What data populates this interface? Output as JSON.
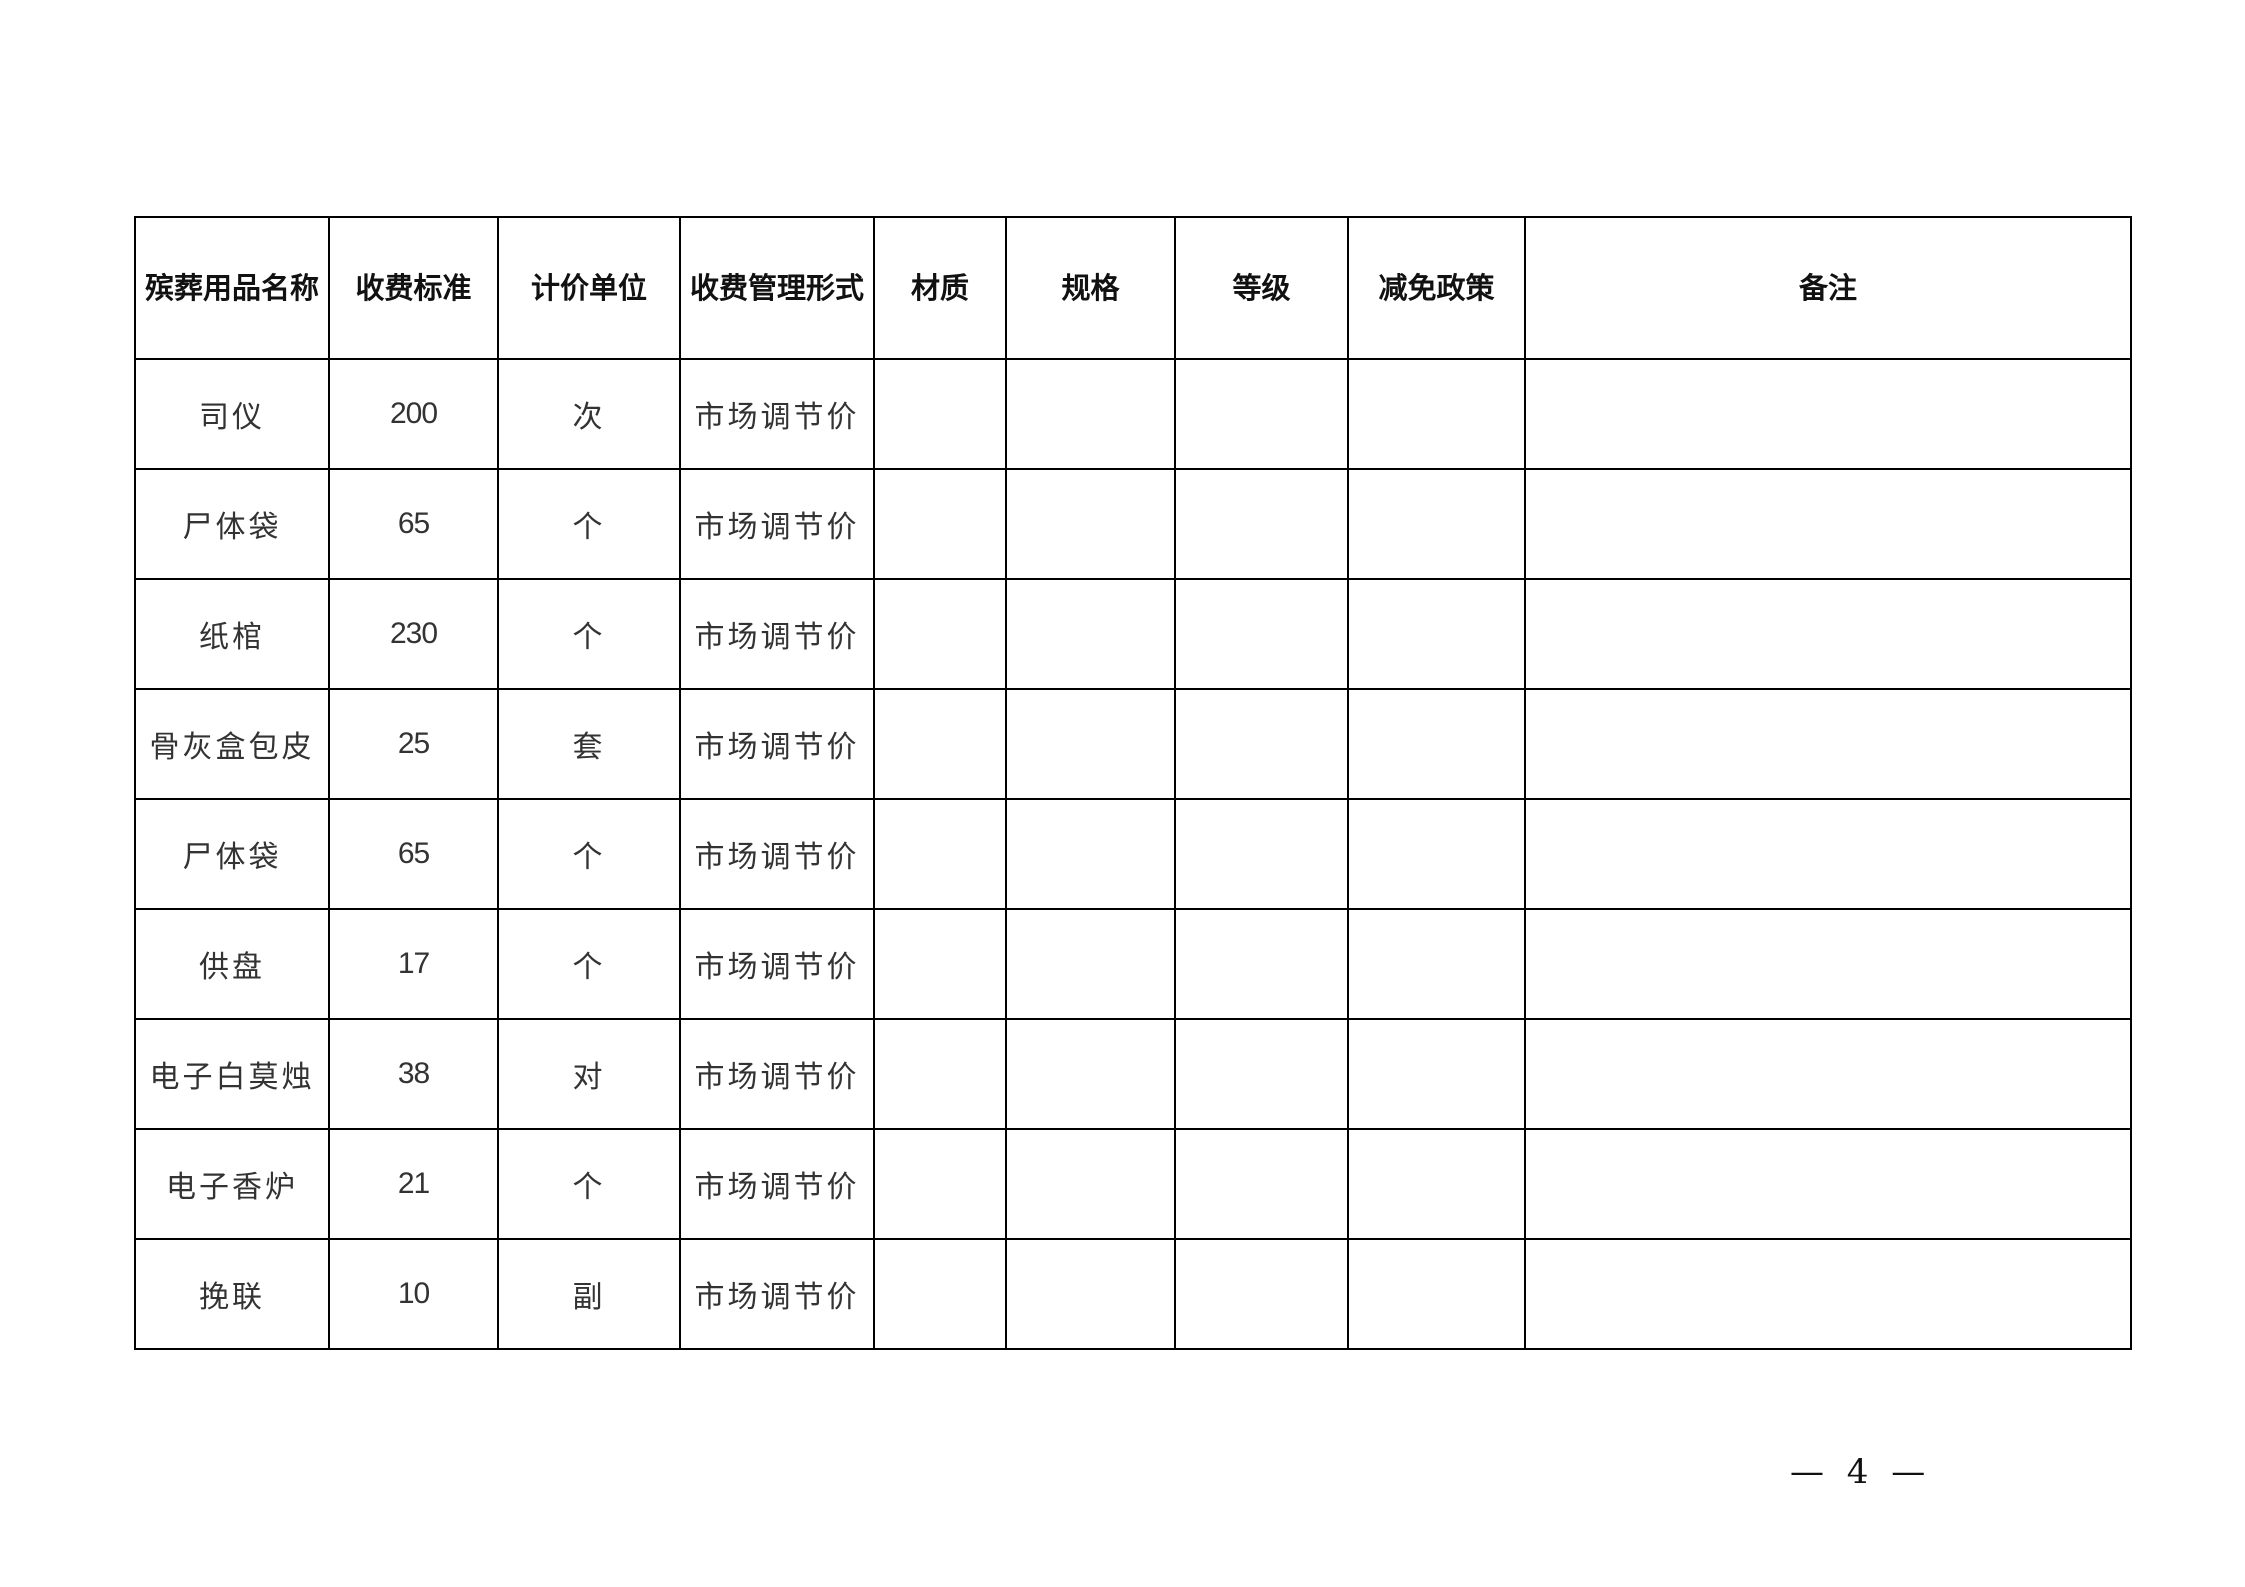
{
  "table": {
    "headers": [
      "殡葬用品名称",
      "收费标准",
      "计价单位",
      "收费管理形式",
      "材质",
      "规格",
      "等级",
      "减免政策",
      "备注"
    ],
    "rows": [
      [
        "司仪",
        "200",
        "次",
        "市场调节价",
        "",
        "",
        "",
        "",
        ""
      ],
      [
        "尸体袋",
        "65",
        "个",
        "市场调节价",
        "",
        "",
        "",
        "",
        ""
      ],
      [
        "纸棺",
        "230",
        "个",
        "市场调节价",
        "",
        "",
        "",
        "",
        ""
      ],
      [
        "骨灰盒包皮",
        "25",
        "套",
        "市场调节价",
        "",
        "",
        "",
        "",
        ""
      ],
      [
        "尸体袋",
        "65",
        "个",
        "市场调节价",
        "",
        "",
        "",
        "",
        ""
      ],
      [
        "供盘",
        "17",
        "个",
        "市场调节价",
        "",
        "",
        "",
        "",
        ""
      ],
      [
        "电子白莫烛",
        "38",
        "对",
        "市场调节价",
        "",
        "",
        "",
        "",
        ""
      ],
      [
        "电子香炉",
        "21",
        "个",
        "市场调节价",
        "",
        "",
        "",
        "",
        ""
      ],
      [
        "挽联",
        "10",
        "副",
        "市场调节价",
        "",
        "",
        "",
        "",
        ""
      ]
    ]
  },
  "footer": {
    "page_number": "— 4 —"
  }
}
